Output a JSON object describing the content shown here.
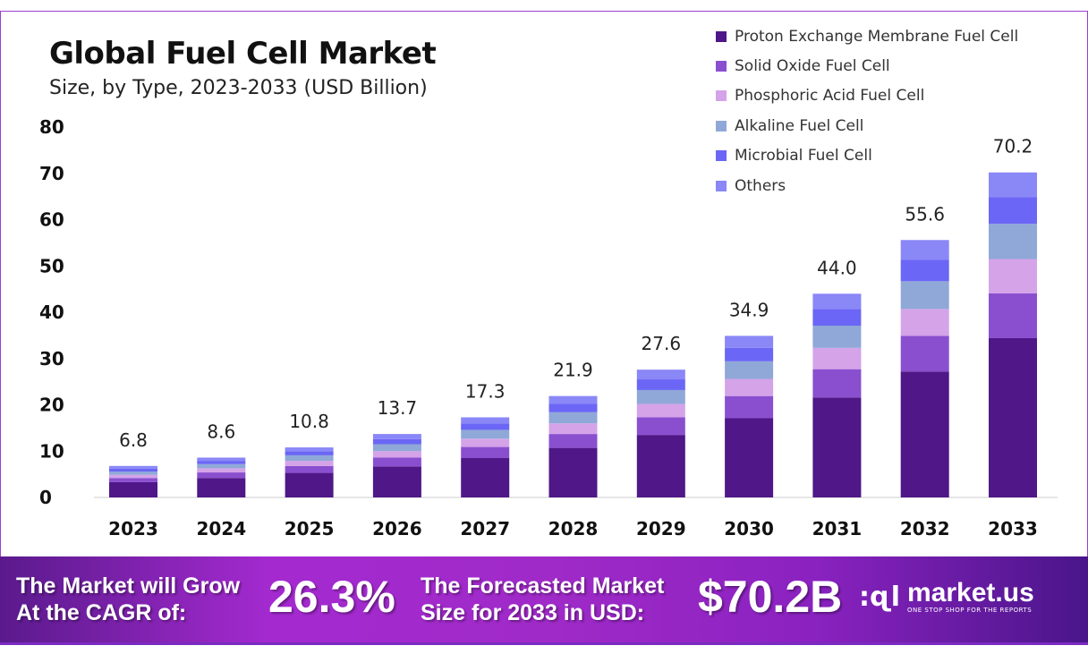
{
  "header": {
    "title": "Global Fuel Cell Market",
    "subtitle": "Size, by Type, 2023-2033 (USD Billion)"
  },
  "chart_data": {
    "type": "bar",
    "stacked": true,
    "title": "Global Fuel Cell Market",
    "subtitle": "Size, by Type, 2023-2033 (USD Billion)",
    "xlabel": "",
    "ylabel": "",
    "ylim": [
      0,
      80
    ],
    "yticks": [
      0,
      10,
      20,
      30,
      40,
      50,
      60,
      70,
      80
    ],
    "grid": false,
    "legend_position": "top-right",
    "categories": [
      "2023",
      "2024",
      "2025",
      "2026",
      "2027",
      "2028",
      "2029",
      "2030",
      "2031",
      "2032",
      "2033"
    ],
    "totals": [
      6.8,
      8.6,
      10.8,
      13.7,
      17.3,
      21.9,
      27.6,
      34.9,
      44.0,
      55.6,
      70.2
    ],
    "total_labels": [
      "6.8",
      "8.6",
      "10.8",
      "13.7",
      "17.3",
      "21.9",
      "27.6",
      "34.9",
      "44.0",
      "55.6",
      "70.2"
    ],
    "series": [
      {
        "name": "Proton Exchange Membrane Fuel Cell",
        "color": "#4f1787",
        "values": [
          3.3,
          4.2,
          5.3,
          6.7,
          8.5,
          10.7,
          13.5,
          17.1,
          21.6,
          27.2,
          34.4
        ]
      },
      {
        "name": "Solid Oxide Fuel Cell",
        "color": "#8a4fcf",
        "values": [
          0.9,
          1.2,
          1.5,
          1.9,
          2.4,
          3.0,
          3.8,
          4.8,
          6.1,
          7.7,
          9.7
        ]
      },
      {
        "name": "Phosphoric Acid Fuel Cell",
        "color": "#d4a3e8",
        "values": [
          0.7,
          0.9,
          1.1,
          1.4,
          1.8,
          2.3,
          2.9,
          3.7,
          4.6,
          5.8,
          7.4
        ]
      },
      {
        "name": "Alkaline Fuel Cell",
        "color": "#8fa8d8",
        "values": [
          0.7,
          0.9,
          1.2,
          1.5,
          1.9,
          2.4,
          3.0,
          3.8,
          4.8,
          6.0,
          7.6
        ]
      },
      {
        "name": "Microbial Fuel Cell",
        "color": "#6b66f5",
        "values": [
          0.6,
          0.7,
          0.9,
          1.1,
          1.4,
          1.8,
          2.3,
          2.9,
          3.6,
          4.6,
          5.8
        ]
      },
      {
        "name": "Others",
        "color": "#8a87f7",
        "values": [
          0.6,
          0.7,
          0.8,
          1.1,
          1.3,
          1.7,
          2.1,
          2.6,
          3.3,
          4.3,
          5.3
        ]
      }
    ]
  },
  "footer": {
    "cagr_label": "The Market will Grow At the CAGR of:",
    "cagr_value": "26.3%",
    "forecast_label": "The Forecasted Market Size for 2033 in USD:",
    "forecast_value": "$70.2B",
    "brand": "market.us",
    "brand_tagline": "ONE STOP SHOP FOR THE REPORTS"
  }
}
